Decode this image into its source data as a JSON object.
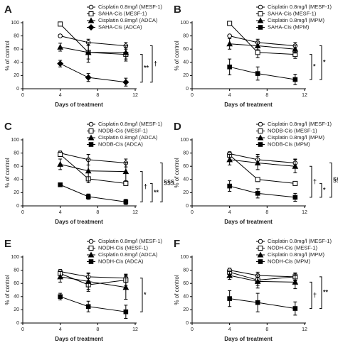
{
  "chart_data": [
    {
      "type": "line",
      "title": "A",
      "x": [
        4,
        7,
        11
      ],
      "xlim": [
        0,
        12
      ],
      "xticks": [
        0,
        4,
        8,
        12
      ],
      "ylim": [
        0,
        100
      ],
      "yticks": [
        0,
        20,
        40,
        60,
        80,
        100
      ],
      "xlabel": "Days of treatment",
      "ylabel": "% of control",
      "series": [
        {
          "name": "Cisplatin 0.8mg/l (MESF-1)",
          "color": "#000000",
          "marker": "circle-open",
          "values": [
            80,
            70,
            65
          ],
          "errors": [
            2,
            5,
            5
          ]
        },
        {
          "name": "SAHA-Cis (MESF-1)",
          "color": "#000000",
          "marker": "square-open",
          "values": [
            98,
            55,
            52
          ],
          "errors": [
            3,
            15,
            10
          ]
        },
        {
          "name": "Cisplatin 0.8mg/l (ADCA)",
          "color": "#000000",
          "marker": "triangle",
          "values": [
            63,
            55,
            55
          ],
          "errors": [
            6,
            10,
            10
          ]
        },
        {
          "name": "SAHA-Cis (ADCA)",
          "color": "#000000",
          "marker": "diamond",
          "values": [
            38,
            17,
            10
          ],
          "errors": [
            5,
            6,
            6
          ]
        }
      ],
      "annotations": [
        "**",
        "†"
      ]
    },
    {
      "type": "line",
      "title": "B",
      "x": [
        4,
        7,
        11
      ],
      "xlim": [
        0,
        12
      ],
      "xticks": [
        0,
        4,
        8,
        12
      ],
      "ylim": [
        0,
        100
      ],
      "yticks": [
        0,
        20,
        40,
        60,
        80,
        100
      ],
      "xlabel": "Days of treatment",
      "ylabel": "% of control",
      "series": [
        {
          "name": "Cisplatin 0.8mg/l (MESF-1)",
          "color": "#000000",
          "marker": "circle-open",
          "values": [
            80,
            70,
            65
          ],
          "errors": [
            2,
            5,
            5
          ]
        },
        {
          "name": "SAHA-Cis (MESF-1)",
          "color": "#000000",
          "marker": "square-open",
          "values": [
            99,
            55,
            52
          ],
          "errors": [
            3,
            8,
            6
          ]
        },
        {
          "name": "Cisplatin 0.8mg/l (MPM)",
          "color": "#000000",
          "marker": "triangle",
          "values": [
            68,
            65,
            60
          ],
          "errors": [
            8,
            6,
            6
          ]
        },
        {
          "name": "SAHA-Cis (MPM)",
          "color": "#000000",
          "marker": "square",
          "values": [
            33,
            23,
            14
          ],
          "errors": [
            12,
            10,
            8
          ]
        }
      ],
      "annotations": [
        "*",
        "*"
      ]
    },
    {
      "type": "line",
      "title": "C",
      "x": [
        4,
        7,
        11
      ],
      "xlim": [
        0,
        12
      ],
      "xticks": [
        0,
        4,
        8,
        12
      ],
      "ylim": [
        0,
        100
      ],
      "yticks": [
        0,
        20,
        40,
        60,
        80,
        100
      ],
      "xlabel": "Days of treatment",
      "ylabel": "% of control",
      "series": [
        {
          "name": "Cisplatin 0.8mg/l (MESF-1)",
          "color": "#000000",
          "marker": "circle-open",
          "values": [
            80,
            70,
            65
          ],
          "errors": [
            3,
            8,
            6
          ]
        },
        {
          "name": "NODB-Cis (MESF-1)",
          "color": "#000000",
          "marker": "square-open",
          "values": [
            78,
            41,
            34
          ],
          "errors": [
            3,
            3,
            3
          ]
        },
        {
          "name": "Cisplatin 0.8mg/l (ADCA)",
          "color": "#000000",
          "marker": "triangle",
          "values": [
            63,
            53,
            52
          ],
          "errors": [
            8,
            18,
            14
          ]
        },
        {
          "name": "NODB-Cis (ADCA)",
          "color": "#000000",
          "marker": "square",
          "values": [
            32,
            14,
            6
          ],
          "errors": [
            1,
            4,
            4
          ]
        }
      ],
      "annotations": [
        "†",
        "**",
        "§§§"
      ]
    },
    {
      "type": "line",
      "title": "D",
      "x": [
        4,
        7,
        11
      ],
      "xlim": [
        0,
        12
      ],
      "xticks": [
        0,
        4,
        8,
        12
      ],
      "ylim": [
        0,
        100
      ],
      "yticks": [
        0,
        20,
        40,
        60,
        80,
        100
      ],
      "xlabel": "Days of treatment",
      "ylabel": "% of control",
      "series": [
        {
          "name": "Cisplatin 0.8mg/l (MESF-1)",
          "color": "#000000",
          "marker": "circle-open",
          "values": [
            79,
            70,
            65
          ],
          "errors": [
            3,
            8,
            6
          ]
        },
        {
          "name": "NODB-Cis (MESF-1)",
          "color": "#000000",
          "marker": "square-open",
          "values": [
            77,
            40,
            34
          ],
          "errors": [
            3,
            3,
            3
          ]
        },
        {
          "name": "Cisplatin 0.8mg/l (MPM)",
          "color": "#000000",
          "marker": "triangle",
          "values": [
            70,
            65,
            60
          ],
          "errors": [
            8,
            10,
            10
          ]
        },
        {
          "name": "NODB-Cis (MPM)",
          "color": "#000000",
          "marker": "square",
          "values": [
            30,
            19,
            13
          ],
          "errors": [
            8,
            7,
            6
          ]
        }
      ],
      "annotations": [
        "†",
        "*",
        "§§§"
      ]
    },
    {
      "type": "line",
      "title": "E",
      "x": [
        4,
        7,
        11
      ],
      "xlim": [
        0,
        12
      ],
      "xticks": [
        0,
        4,
        8,
        12
      ],
      "ylim": [
        0,
        100
      ],
      "yticks": [
        0,
        20,
        40,
        60,
        80,
        100
      ],
      "xlabel": "Days of treatment",
      "ylabel": "% of control",
      "series": [
        {
          "name": "Cisplatin 0.8mg/l (MESF-1)",
          "color": "#000000",
          "marker": "circle-open",
          "values": [
            78,
            70,
            68
          ],
          "errors": [
            3,
            6,
            6
          ]
        },
        {
          "name": "NODH-Cis (MESF-1)",
          "color": "#000000",
          "marker": "square-open",
          "values": [
            75,
            58,
            65
          ],
          "errors": [
            3,
            10,
            8
          ]
        },
        {
          "name": "Cisplatin 0.8mg/l (ADCA)",
          "color": "#000000",
          "marker": "triangle",
          "values": [
            70,
            63,
            54
          ],
          "errors": [
            8,
            12,
            18
          ]
        },
        {
          "name": "NODH-Cis (ADCA)",
          "color": "#000000",
          "marker": "square",
          "values": [
            40,
            25,
            17
          ],
          "errors": [
            5,
            8,
            10
          ]
        }
      ],
      "annotations": [
        "*"
      ]
    },
    {
      "type": "line",
      "title": "F",
      "x": [
        4,
        7,
        11
      ],
      "xlim": [
        0,
        12
      ],
      "xticks": [
        0,
        4,
        8,
        12
      ],
      "ylim": [
        0,
        100
      ],
      "yticks": [
        0,
        20,
        40,
        60,
        80,
        100
      ],
      "xlabel": "Days of treatment",
      "ylabel": "% of control",
      "series": [
        {
          "name": "Cisplatin 0.8mg/l (MESF-1)",
          "color": "#000000",
          "marker": "circle-open",
          "values": [
            80,
            72,
            70
          ],
          "errors": [
            3,
            5,
            5
          ]
        },
        {
          "name": "NODH-Cis (MESF-1)",
          "color": "#000000",
          "marker": "square-open",
          "values": [
            77,
            65,
            70
          ],
          "errors": [
            3,
            8,
            6
          ]
        },
        {
          "name": "Cisplatin 0.8mg/l (MPM)",
          "color": "#000000",
          "marker": "triangle",
          "values": [
            72,
            63,
            62
          ],
          "errors": [
            6,
            10,
            10
          ]
        },
        {
          "name": "NODH-Cis (MPM)",
          "color": "#000000",
          "marker": "square",
          "values": [
            37,
            31,
            22
          ],
          "errors": [
            12,
            14,
            10
          ]
        }
      ],
      "annotations": [
        "†",
        "**"
      ]
    }
  ]
}
